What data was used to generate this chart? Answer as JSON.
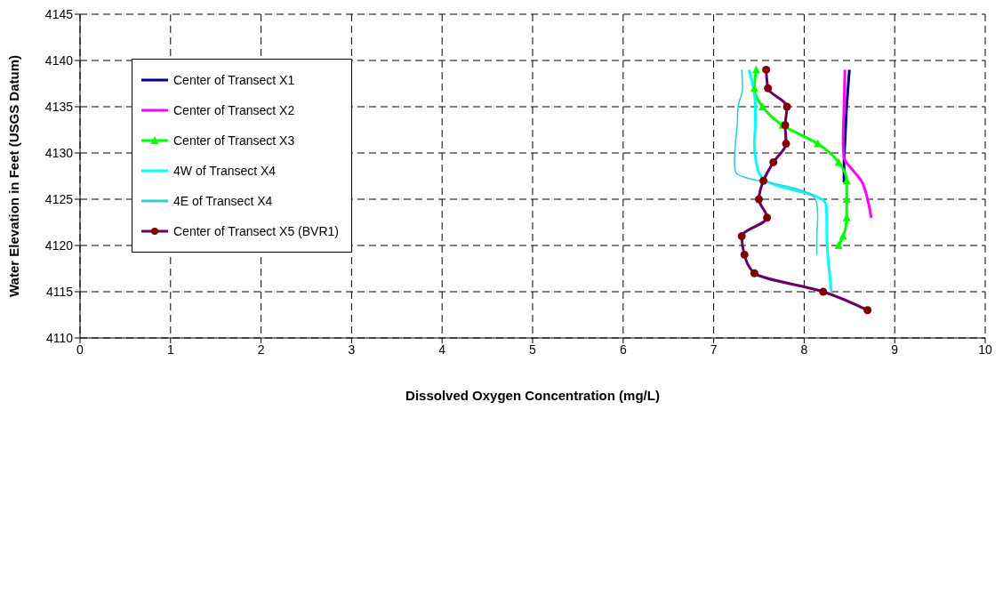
{
  "chart_data": {
    "type": "line",
    "xlabel": "Dissolved Oxygen Concentration (mg/L)",
    "ylabel": "Water Elevation in Feet (USGS Datum)",
    "xlim": [
      0,
      10
    ],
    "xticks": [
      0,
      1,
      2,
      3,
      4,
      5,
      6,
      7,
      8,
      9,
      10
    ],
    "ylim": [
      4110,
      4145
    ],
    "yticks": [
      4110,
      4115,
      4120,
      4125,
      4130,
      4135,
      4140,
      4145
    ],
    "grid": true,
    "legend": "top left",
    "series": [
      {
        "name": "Center of Transect X1",
        "color": "#000080",
        "marker": "none",
        "x": [
          8.5,
          8.47,
          8.45,
          8.44,
          8.44,
          8.44
        ],
        "values": [
          4139,
          4135,
          4131,
          4129,
          4127.5,
          4126.8
        ]
      },
      {
        "name": "Center of Transect X2",
        "color": "#ff00ff",
        "marker": "none",
        "x": [
          8.45,
          8.44,
          8.43,
          8.44,
          8.55,
          8.63,
          8.7,
          8.74
        ],
        "values": [
          4139,
          4135,
          4131,
          4129.5,
          4128,
          4127,
          4125,
          4123
        ]
      },
      {
        "name": "Center of Transect X3",
        "color": "#00ff00",
        "marker": "triangle",
        "x": [
          7.47,
          7.45,
          7.54,
          7.76,
          8.15,
          8.38,
          8.47,
          8.47,
          8.47,
          8.43,
          8.38
        ],
        "values": [
          4139,
          4137,
          4135,
          4133,
          4131,
          4129,
          4127,
          4125,
          4123,
          4121,
          4120
        ]
      },
      {
        "name": "4W of Transect X4",
        "color": "#00ffff",
        "marker": "none",
        "x": [
          7.39,
          7.44,
          7.46,
          7.46,
          7.45,
          7.47,
          7.52,
          7.69,
          8.11,
          8.24,
          8.25,
          8.25,
          8.26,
          8.28,
          8.3
        ],
        "values": [
          4139,
          4137,
          4135,
          4133,
          4131,
          4129,
          4127.5,
          4126.5,
          4125.4,
          4124.5,
          4123,
          4121,
          4119,
          4117,
          4115
        ]
      },
      {
        "name": "4E of Transect X4",
        "color": "#33cccc",
        "marker": "none",
        "x": [
          7.31,
          7.32,
          7.27,
          7.26,
          7.24,
          7.23,
          7.24,
          7.33,
          7.81,
          8.08,
          8.14,
          8.15,
          8.14,
          8.14
        ],
        "values": [
          4139,
          4137,
          4135,
          4133,
          4131,
          4129,
          4128,
          4127.4,
          4126.4,
          4125.5,
          4124.5,
          4123,
          4121,
          4119
        ]
      },
      {
        "name": "Center of Transect X5 (BVR1)",
        "color": "#660066",
        "marker": "circle",
        "x": [
          7.58,
          7.6,
          7.81,
          7.79,
          7.8,
          7.66,
          7.55,
          7.5,
          7.59,
          7.31,
          7.34,
          7.45,
          8.21,
          8.7
        ],
        "values": [
          4139,
          4137,
          4135,
          4133,
          4131,
          4129,
          4127,
          4125,
          4123,
          4121,
          4119,
          4117,
          4115,
          4113
        ]
      }
    ]
  }
}
